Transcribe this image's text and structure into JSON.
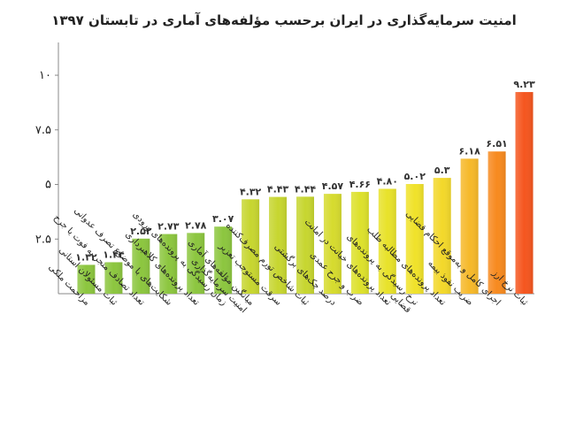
{
  "chart_data": {
    "type": "bar",
    "title": "امنیت سرمایه‌گذاری در ایران برحسب مؤلفه‌های آماری در تابستان ۱۳۹۷",
    "xlabel": "",
    "ylabel": "",
    "ylim": [
      0,
      11.5
    ],
    "yticks": [
      2.5,
      5,
      7.5,
      10
    ],
    "ytick_labels": [
      "۲.۵",
      "۵",
      "۷.۵",
      "۱۰"
    ],
    "grid": false,
    "categories": [
      [
        "مزاحمت ملکی"
      ],
      [
        "ثبات مسئولان استانی"
      ],
      [
        "تعداد تصادف منجر به فوت یا جرح"
      ],
      [
        "شکایت‌های با موضوع تصرف عدوانی"
      ],
      [
        "تعداد پرونده‌های کلاهبرداری"
      ],
      [
        "زمان رسیدگی به پرونده‌های ورودی"
      ],
      [
        "میانگین مؤلفه‌های آماری",
        "امنیت سرمایه‌گذاری"
      ],
      [
        "سرقت مستوجب تعزیر"
      ],
      [
        "ثبات شاخص تورم مصرف‌کننده"
      ],
      [
        "درصد چک‌های برگشتی"
      ],
      [
        "ضرب و جرح عمدی"
      ],
      [
        "تعداد پرونده‌های خیانت در امانت"
      ],
      [
        "نرخ رسیدگی به پرونده‌های",
        "قضایی"
      ],
      [
        "تعداد پرونده‌های مطالبه طلب"
      ],
      [
        "ضریب نفوذ بیمه"
      ],
      [
        "اجرای کامل و به‌موقع احکام قضایی"
      ],
      [
        "ثبات نرخ ارز"
      ]
    ],
    "values": [
      1.32,
      1.44,
      2.52,
      2.73,
      2.78,
      3.07,
      4.32,
      4.43,
      4.44,
      4.57,
      4.66,
      4.8,
      5.02,
      5.3,
      6.18,
      6.51,
      9.23
    ],
    "value_labels": [
      "۱.۳۲",
      "۱.۴۴",
      "۲.۵۲",
      "۲.۷۳",
      "۲.۷۸",
      "۳.۰۷",
      "۴.۳۲",
      "۴.۴۳",
      "۴.۴۴",
      "۴.۵۷",
      "۴.۶۶",
      "۴.۸۰",
      "۵.۰۲",
      "۵.۳",
      "۶.۱۸",
      "۶.۵۱",
      "۹.۲۳"
    ],
    "colors": [
      "#8cc63f",
      "#8cc63f",
      "#8cc63f",
      "#8cc63f",
      "#8cc63f",
      "#8cc63f",
      "#c7d630",
      "#c7d630",
      "#c7d630",
      "#d6db2e",
      "#dde12c",
      "#e8e22a",
      "#f0e22a",
      "#f3d82a",
      "#f6b92a",
      "#f78a1f",
      "#f5561f"
    ]
  }
}
